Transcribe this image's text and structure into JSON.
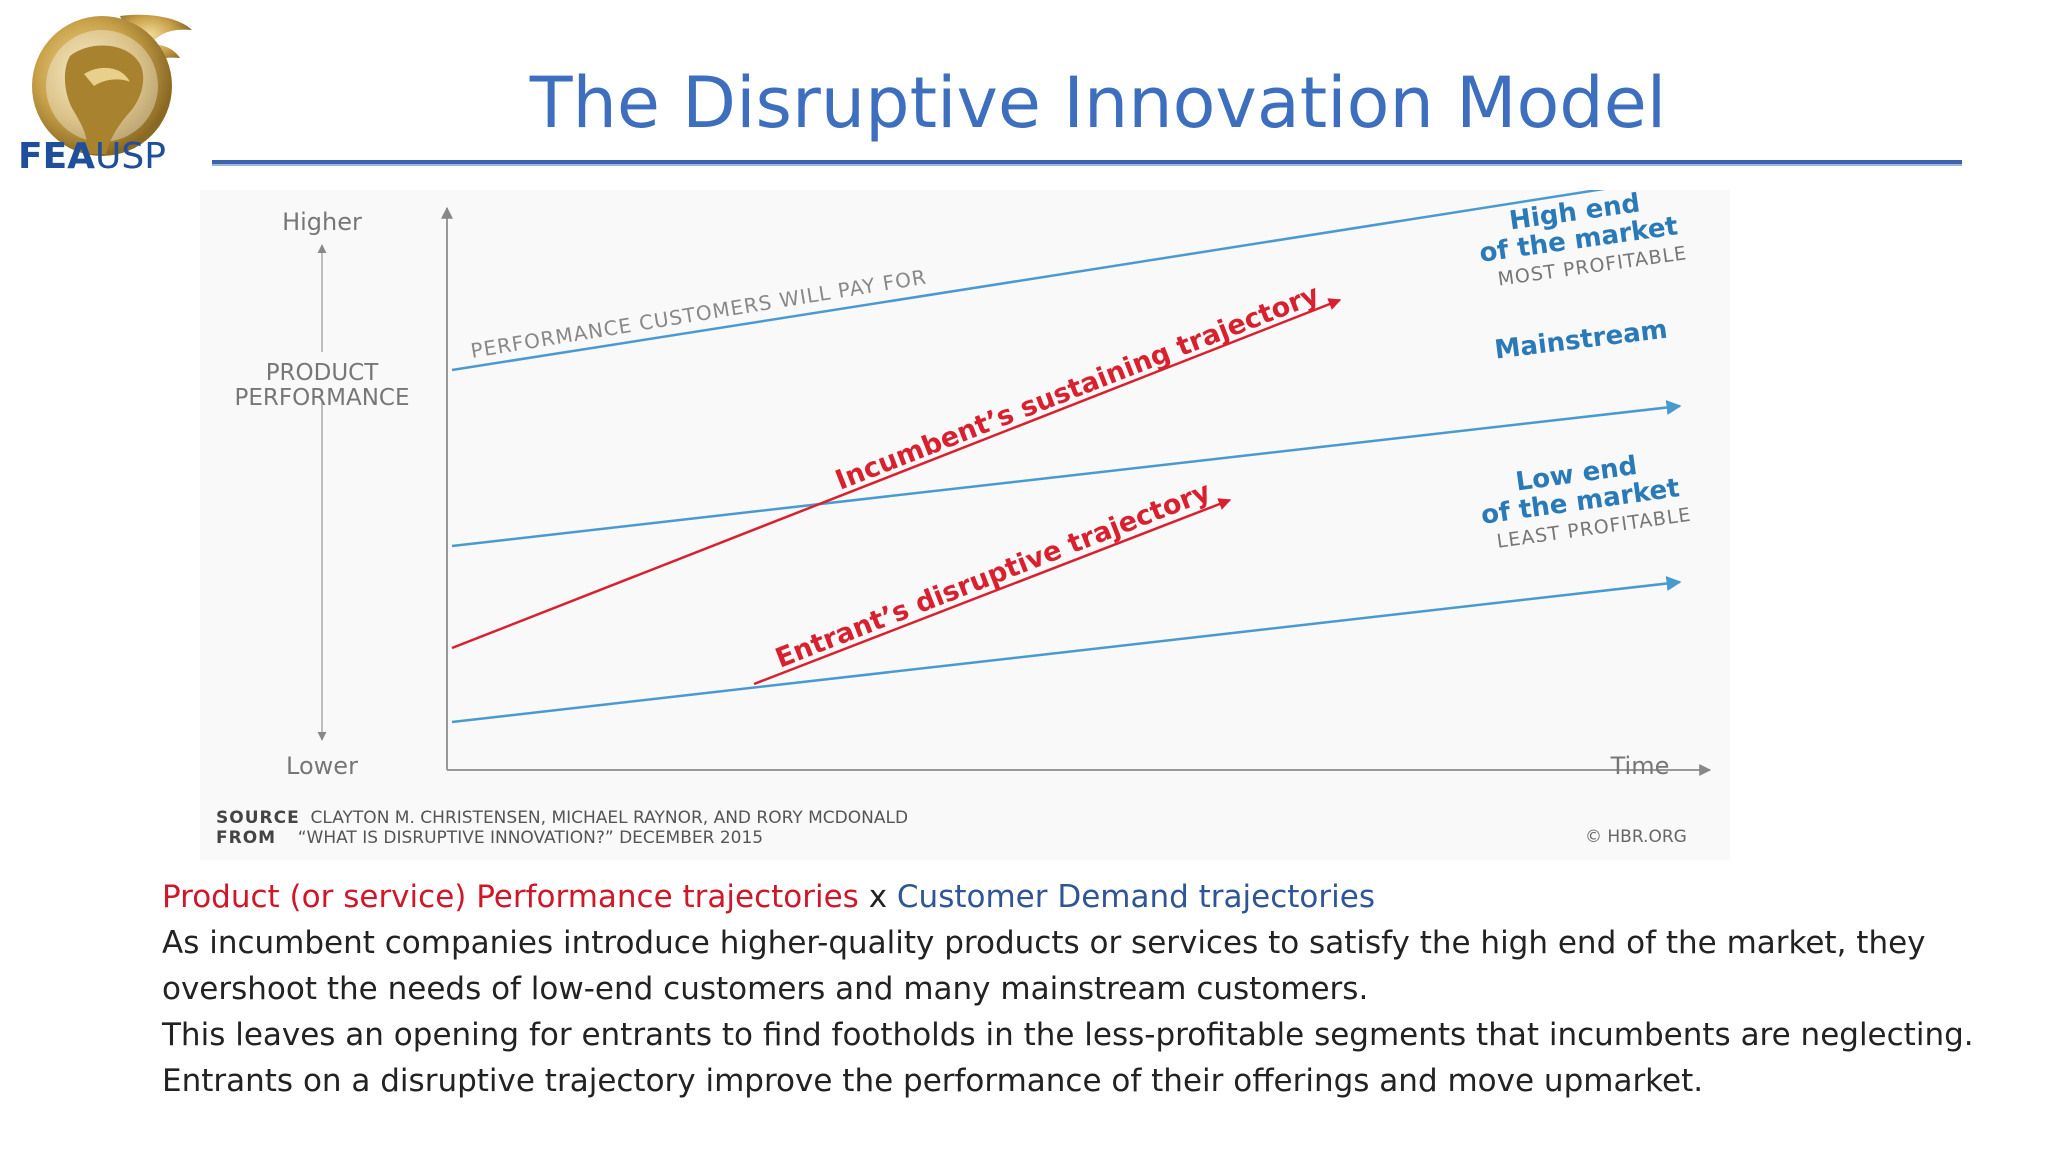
{
  "logo": {
    "part1": "FEA",
    "part2": "USP"
  },
  "title": "The Disruptive Innovation Model",
  "diagram": {
    "y_higher": "Higher",
    "y_lower": "Lower",
    "y_label_1": "PRODUCT",
    "y_label_2": "PERFORMANCE",
    "x_label": "Time",
    "customer_line_label": "PERFORMANCE CUSTOMERS WILL PAY FOR",
    "incumbent_label": "Incumbent’s sustaining trajectory",
    "entrant_label": "Entrant’s disruptive trajectory",
    "high_end_1": "High end",
    "high_end_2": "of the market",
    "high_end_3": "MOST PROFITABLE",
    "mainstream": "Mainstream",
    "low_end_1": "Low end",
    "low_end_2": "of the market",
    "low_end_3": "LEAST PROFITABLE",
    "source_key": "SOURCE",
    "source_value": "CLAYTON M. CHRISTENSEN, MICHAEL RAYNOR, AND RORY MCDONALD",
    "from_key": "FROM",
    "from_value": "“WHAT IS DISRUPTIVE INNOVATION?” DECEMBER 2015",
    "credit": "© HBR.ORG",
    "colors": {
      "blue_line": "#4a9ad2",
      "red_line": "#d9202f",
      "label_blue": "#2a7ab8"
    }
  },
  "caption": {
    "red_phrase": "Product (or service) Performance trajectories",
    "x": " x ",
    "blue_phrase": "Customer Demand trajectories",
    "line1": "As incumbent companies introduce higher-quality products or services to satisfy the high end of the market, they overshoot the needs of low-end customers and many mainstream customers.",
    "line2": "This leaves an opening for entrants to find footholds in the less-profitable segments that incumbents are neglecting.",
    "line3": "Entrants on a disruptive trajectory improve the performance of their offerings and move upmarket."
  }
}
